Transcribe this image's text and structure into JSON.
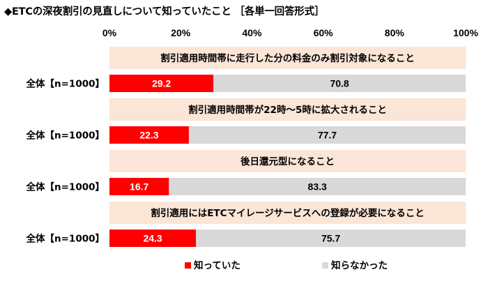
{
  "title": "◆ETCの深夜割引の見直しについて知っていたこと ［各単一回答形式］",
  "colors": {
    "known": "#ff0000",
    "unknown": "#d9d9d9",
    "question_box": "#fbe5d6",
    "text_on_known": "#ffffff",
    "text_on_unknown": "#000000"
  },
  "chart_data": {
    "type": "bar",
    "orientation": "horizontal",
    "stacked": true,
    "percent": true,
    "xlim": [
      0,
      100
    ],
    "x_ticks": [
      "0%",
      "20%",
      "40%",
      "60%",
      "80%",
      "100%"
    ],
    "legend": {
      "position": "bottom-left",
      "entries": [
        "知っていた",
        "知らなかった"
      ]
    },
    "series": [
      {
        "name": "知っていた",
        "color": "#ff0000"
      },
      {
        "name": "知らなかった",
        "color": "#d9d9d9"
      }
    ],
    "items": [
      {
        "question": "割引適用時間帯に走行した分の料金のみ割引対象になること",
        "row_label": "全体【n=1000】",
        "values": [
          29.2,
          70.8
        ]
      },
      {
        "question": "割引適用時間帯が22時～5時に拡大されること",
        "row_label": "全体【n=1000】",
        "values": [
          22.3,
          77.7
        ]
      },
      {
        "question": "後日還元型になること",
        "row_label": "全体【n=1000】",
        "values": [
          16.7,
          83.3
        ]
      },
      {
        "question": "割引適用にはETCマイレージサービスへの登録が必要になること",
        "row_label": "全体【n=1000】",
        "values": [
          24.3,
          75.7
        ]
      }
    ]
  }
}
